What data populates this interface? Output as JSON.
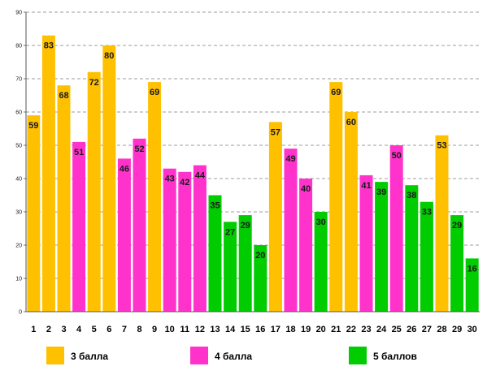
{
  "chart_data": {
    "type": "bar",
    "title": "",
    "xlabel": "",
    "ylabel": "",
    "ylim": [
      0,
      90
    ],
    "yticks": [
      0,
      10,
      20,
      30,
      40,
      50,
      60,
      70,
      80,
      90
    ],
    "grid": true,
    "legend_position": "bottom",
    "categories": [
      "1",
      "2",
      "3",
      "4",
      "5",
      "6",
      "7",
      "8",
      "9",
      "10",
      "11",
      "12",
      "13",
      "14",
      "15",
      "16",
      "17",
      "18",
      "19",
      "20",
      "21",
      "22",
      "23",
      "24",
      "25",
      "26",
      "27",
      "28",
      "29",
      "30"
    ],
    "values": [
      59,
      83,
      68,
      51,
      72,
      80,
      46,
      52,
      69,
      43,
      42,
      44,
      35,
      27,
      29,
      20,
      57,
      49,
      40,
      30,
      69,
      60,
      41,
      39,
      50,
      38,
      33,
      53,
      29,
      16
    ],
    "groups": [
      "3 балла",
      "3 балла",
      "3 балла",
      "4 балла",
      "3 балла",
      "3 балла",
      "4 балла",
      "4 балла",
      "3 балла",
      "4 балла",
      "4 балла",
      "4 балла",
      "5 баллов",
      "5 баллов",
      "5 баллов",
      "5 баллов",
      "3 балла",
      "4 балла",
      "4 балла",
      "5 баллов",
      "3 балла",
      "3 балла",
      "4 балла",
      "5 баллов",
      "4 балла",
      "5 баллов",
      "5 баллов",
      "3 балла",
      "5 баллов",
      "5 баллов"
    ],
    "legend": [
      {
        "name": "3 балла",
        "color": "#FFC000"
      },
      {
        "name": "4 балла",
        "color": "#FF33CC"
      },
      {
        "name": "5 баллов",
        "color": "#00CC00"
      }
    ]
  }
}
